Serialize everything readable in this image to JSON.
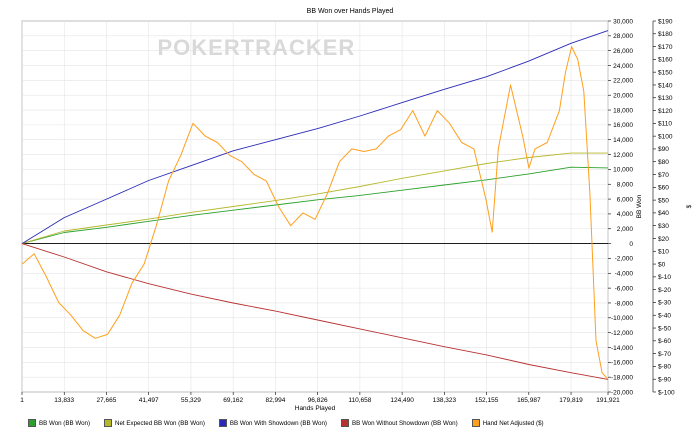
{
  "chart_data": {
    "type": "line",
    "title": "BB Won over Hands Played",
    "xlabel": "Hands Played",
    "ylabel_left": "BB Won",
    "ylabel_right": "$",
    "watermark": "POKERTRACKER",
    "x_range": [
      1,
      191921
    ],
    "x_ticks": [
      "1",
      "13,833",
      "27,665",
      "41,497",
      "55,329",
      "69,162",
      "82,994",
      "96,826",
      "110,658",
      "124,490",
      "138,323",
      "152,155",
      "165,987",
      "179,819",
      "191,921"
    ],
    "y_left_range": [
      -20000,
      30000
    ],
    "y_left_ticks": [
      "30,000",
      "28,000",
      "26,000",
      "24,000",
      "22,000",
      "20,000",
      "18,000",
      "16,000",
      "14,000",
      "12,000",
      "10,000",
      "8,000",
      "6,000",
      "4,000",
      "2,000",
      "0",
      "-2,000",
      "-4,000",
      "-6,000",
      "-8,000",
      "-10,000",
      "-12,000",
      "-14,000",
      "-16,000",
      "-18,000",
      "-20,000"
    ],
    "y_right_range": [
      -100,
      190
    ],
    "y_right_ticks": [
      "$190",
      "$180",
      "$170",
      "$160",
      "$150",
      "$140",
      "$130",
      "$120",
      "$110",
      "$100",
      "$90",
      "$80",
      "$70",
      "$60",
      "$50",
      "$40",
      "$30",
      "$20",
      "$10",
      "$0",
      "$-10",
      "$-20",
      "$-30",
      "$-40",
      "$-50",
      "$-60",
      "$-70",
      "$-80",
      "$-90",
      "$-100"
    ],
    "grid": true,
    "legend_position": "bottom",
    "series": [
      {
        "name": "BB Won (BB Won)",
        "axis": "left",
        "color": "#2ca02c",
        "x": [
          0,
          13833,
          27665,
          41497,
          55329,
          69162,
          82994,
          96826,
          110658,
          124490,
          138323,
          152155,
          165987,
          179819,
          191921
        ],
        "values": [
          0,
          1500,
          2200,
          3000,
          3800,
          4500,
          5200,
          5900,
          6500,
          7200,
          7900,
          8600,
          9400,
          10300,
          10200
        ]
      },
      {
        "name": "Net Expected BB Won (BB Won)",
        "axis": "left",
        "color": "#b5b82a",
        "x": [
          0,
          13833,
          27665,
          41497,
          55329,
          69162,
          82994,
          96826,
          110658,
          124490,
          138323,
          152155,
          165987,
          179819,
          191921
        ],
        "values": [
          0,
          1700,
          2500,
          3300,
          4200,
          5000,
          5800,
          6700,
          7700,
          8800,
          9800,
          10800,
          11600,
          12200,
          12200
        ]
      },
      {
        "name": "BB Won With Showdown (BB Won)",
        "axis": "left",
        "color": "#2a2ab8",
        "x": [
          0,
          13833,
          27665,
          41497,
          55329,
          69162,
          82994,
          96826,
          110658,
          124490,
          138323,
          152155,
          165987,
          179819,
          191921
        ],
        "values": [
          0,
          3500,
          6000,
          8500,
          10500,
          12500,
          14000,
          15500,
          17200,
          19000,
          20800,
          22500,
          24600,
          27000,
          28700
        ]
      },
      {
        "name": "BB Won Without Showdown (BB Won)",
        "axis": "left",
        "color": "#b83232",
        "x": [
          0,
          13833,
          27665,
          41497,
          55329,
          69162,
          82994,
          96826,
          110658,
          124490,
          138323,
          152155,
          165987,
          179819,
          191921
        ],
        "values": [
          0,
          -1800,
          -3800,
          -5400,
          -6800,
          -8000,
          -9100,
          -10300,
          -11500,
          -12700,
          -13900,
          -15000,
          -16300,
          -17400,
          -18300
        ]
      },
      {
        "name": "Hand Net Adjusted ($)",
        "axis": "right",
        "color": "#ff9f1c",
        "x": [
          0,
          4000,
          8000,
          12000,
          16000,
          20000,
          24000,
          28000,
          32000,
          36000,
          40000,
          44000,
          48000,
          52000,
          56000,
          60000,
          64000,
          68000,
          72000,
          76000,
          80000,
          84000,
          88000,
          92000,
          96000,
          100000,
          104000,
          108000,
          112000,
          116000,
          120000,
          124000,
          128000,
          132000,
          136000,
          140000,
          144000,
          148000,
          152000,
          154000,
          156000,
          160000,
          164000,
          166000,
          168000,
          172000,
          176000,
          178000,
          180000,
          182000,
          184000,
          186000,
          188000,
          190000,
          191921
        ],
        "values": [
          0,
          8,
          -10,
          -30,
          -40,
          -52,
          -58,
          -55,
          -40,
          -15,
          0,
          30,
          65,
          85,
          110,
          100,
          95,
          85,
          80,
          70,
          65,
          45,
          30,
          40,
          35,
          55,
          80,
          90,
          88,
          90,
          100,
          105,
          120,
          100,
          120,
          110,
          95,
          90,
          50,
          25,
          90,
          140,
          100,
          75,
          90,
          95,
          120,
          150,
          170,
          160,
          135,
          55,
          -60,
          -85,
          -90
        ]
      }
    ]
  }
}
